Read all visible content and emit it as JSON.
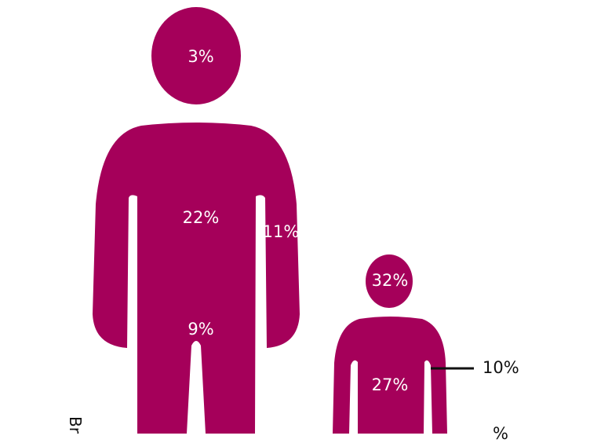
{
  "colors": {
    "figure": "#a5005a",
    "text_on_figure": "#ffffff",
    "leader_line": "#111111"
  },
  "adult": {
    "head": "3%",
    "torso": "22%",
    "arm": "11%",
    "legs": "9%"
  },
  "child": {
    "head": "32%",
    "torso": "27%",
    "arm": "10%",
    "partial_label": "%"
  },
  "side_label_partial": "Br"
}
